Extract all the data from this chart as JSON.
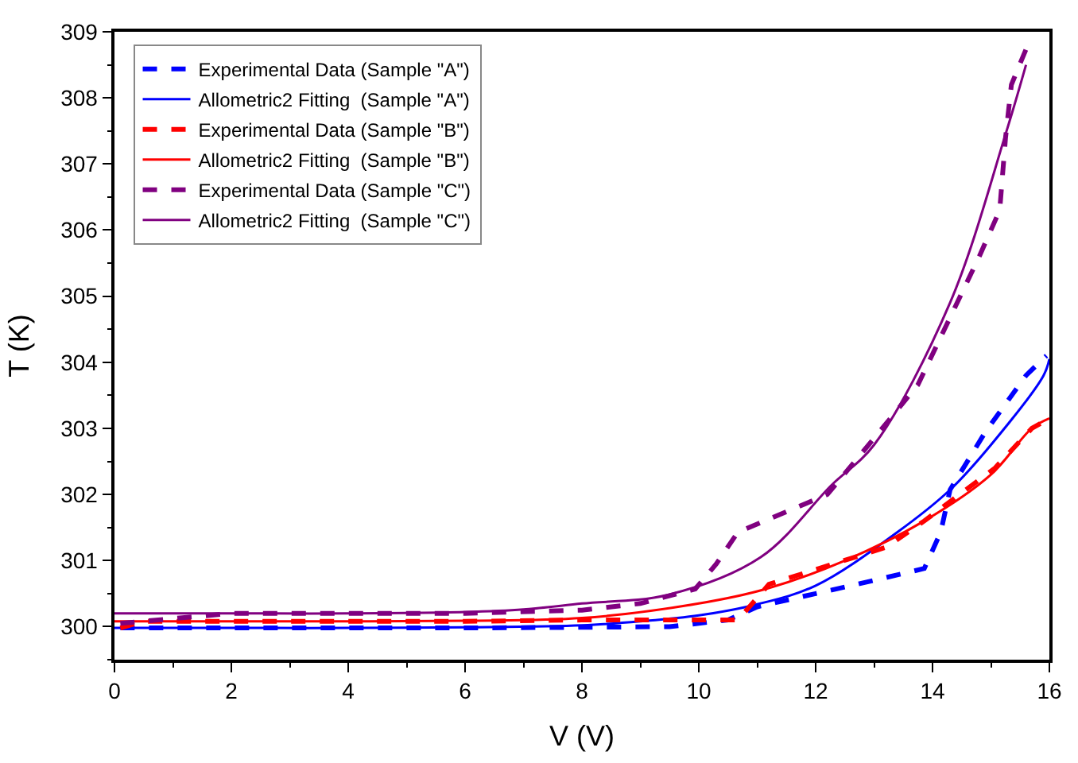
{
  "chart_data": {
    "type": "line",
    "xlabel": "V (V)",
    "ylabel": "T (K)",
    "xlim": [
      0,
      16
    ],
    "xticks": [
      0,
      2,
      4,
      6,
      8,
      10,
      12,
      14,
      16
    ],
    "ylim": [
      299.5,
      309
    ],
    "yticks": [
      300,
      301,
      302,
      303,
      304,
      305,
      306,
      307,
      308,
      309
    ],
    "legend": "top left",
    "series": [
      {
        "name": "Experimental Data (Sample \"A\")",
        "color": "#0000ff",
        "line_style": "dashed",
        "x": [
          0.1,
          2,
          4,
          6,
          8,
          9.5,
          10.5,
          11,
          12,
          13,
          13.86,
          14.14,
          14.3,
          14.9,
          15.6,
          15.95
        ],
        "values": [
          299.98,
          299.98,
          299.98,
          299.98,
          299.99,
          300.0,
          300.1,
          300.3,
          300.5,
          300.7,
          300.88,
          301.43,
          302.07,
          302.94,
          303.8,
          304.1
        ]
      },
      {
        "name": "Allometric2 Fitting  (Sample \"A\")",
        "color": "#0000ff",
        "line_style": "solid",
        "x": [
          0,
          2,
          4,
          6,
          8,
          9,
          10,
          10.96,
          12,
          13.4,
          14.3,
          15,
          15.9,
          16
        ],
        "values": [
          299.98,
          299.98,
          299.98,
          299.99,
          300.02,
          300.08,
          300.17,
          300.33,
          300.62,
          301.43,
          302.07,
          302.75,
          303.8,
          304.05
        ]
      },
      {
        "name": "Experimental Data (Sample \"B\")",
        "color": "#ff0000",
        "line_style": "dashed",
        "x": [
          0.1,
          0.5,
          2,
          4,
          6,
          8,
          10,
          10.67,
          11.2,
          13.2,
          13.86,
          15.07,
          15.7,
          16
        ],
        "values": [
          299.98,
          300.08,
          300.08,
          300.08,
          300.08,
          300.1,
          300.1,
          300.1,
          300.64,
          301.2,
          301.6,
          302.4,
          303.0,
          303.15
        ]
      },
      {
        "name": "Allometric2 Fitting  (Sample \"B\")",
        "color": "#ff0000",
        "line_style": "solid",
        "x": [
          0,
          2,
          4,
          6,
          8,
          10,
          11.15,
          12.5,
          13.86,
          15,
          15.7,
          16
        ],
        "values": [
          300.08,
          300.08,
          300.08,
          300.09,
          300.13,
          300.35,
          300.57,
          301.0,
          301.6,
          302.3,
          303.0,
          303.15
        ]
      },
      {
        "name": "Experimental Data (Sample \"C\")",
        "color": "#800080",
        "line_style": "dashed",
        "x": [
          0.1,
          2,
          4,
          6,
          8,
          9.0,
          9.94,
          10.3,
          10.67,
          12.2,
          13.0,
          13.75,
          14.8,
          15.15,
          15.25,
          15.35,
          15.63
        ],
        "values": [
          300.05,
          300.2,
          300.2,
          300.2,
          300.25,
          300.35,
          300.57,
          300.95,
          301.43,
          302.0,
          302.85,
          303.66,
          305.6,
          306.3,
          307.4,
          308.2,
          308.8
        ]
      },
      {
        "name": "Allometric2 Fitting  (Sample \"C\")",
        "color": "#800080",
        "line_style": "solid",
        "x": [
          0,
          2,
          4,
          6,
          7,
          8,
          9.47,
          11.06,
          12.27,
          13,
          14.3,
          15.25,
          15.6
        ],
        "values": [
          300.2,
          300.2,
          300.2,
          300.22,
          300.26,
          300.35,
          300.48,
          301.05,
          302.14,
          302.75,
          304.9,
          307.45,
          308.5
        ]
      }
    ]
  }
}
